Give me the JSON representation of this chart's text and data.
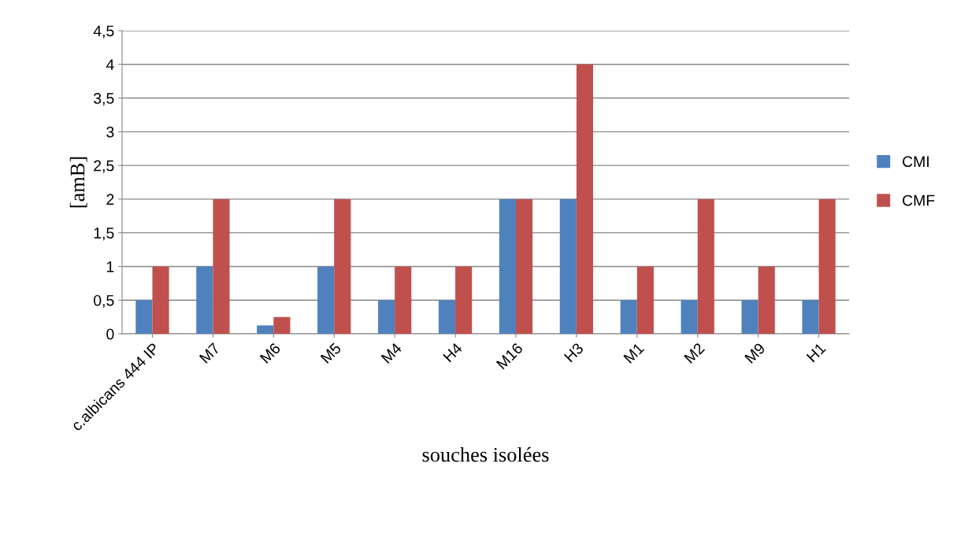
{
  "chart_data": {
    "type": "bar",
    "xlabel": "souches isolées",
    "ylabel": "[amB]",
    "categories": [
      "c.albicans 444 IP",
      "M7",
      "M6",
      "M5",
      "M4",
      "H4",
      "M16",
      "H3",
      "M1",
      "M2",
      "M9",
      "H1"
    ],
    "series": [
      {
        "name": "CMI",
        "color": "#4f81bd",
        "values": [
          0.5,
          1,
          0.125,
          1,
          0.5,
          0.5,
          2,
          2,
          0.5,
          0.5,
          0.5,
          0.5
        ]
      },
      {
        "name": "CMF",
        "color": "#c0504d",
        "values": [
          1,
          2,
          0.25,
          2,
          1,
          1,
          2,
          4,
          1,
          2,
          1,
          2
        ]
      }
    ],
    "ylim": [
      0,
      4.5
    ],
    "yticks": [
      0,
      {
        "value": 0.5,
        "label": "0,5"
      },
      1,
      {
        "value": 1.5,
        "label": "1,5"
      },
      2,
      {
        "value": 2.5,
        "label": "2,5"
      },
      3,
      {
        "value": 3.5,
        "label": "3,5"
      },
      4,
      {
        "value": 4.5,
        "label": "4,5"
      }
    ],
    "grid": "y",
    "legend": "right"
  }
}
